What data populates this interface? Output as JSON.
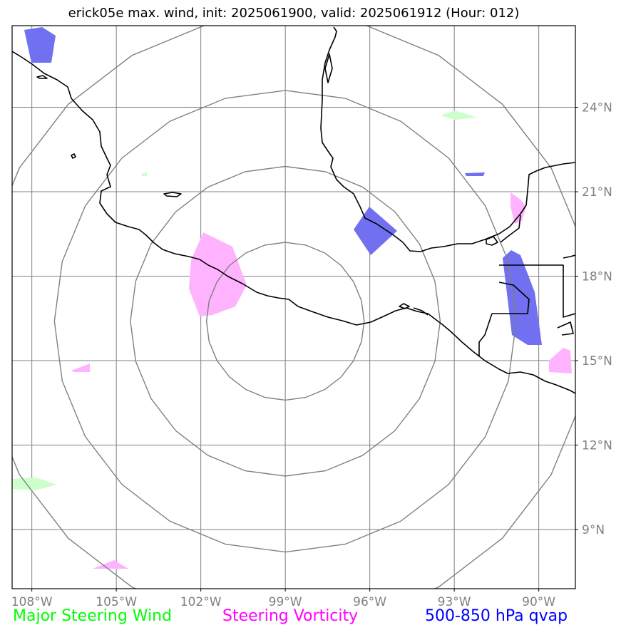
{
  "title": "erick05e max. wind, init: 2025061900, valid: 2025061912 (Hour: 012)",
  "map": {
    "lon_range": [
      -108.7,
      -88.7
    ],
    "lat_range": [
      6.9,
      26.9
    ],
    "lon_ticks": [
      -108,
      -105,
      -102,
      -99,
      -96,
      -93,
      -90
    ],
    "lon_tick_labels": [
      "108°W",
      "105°W",
      "102°W",
      "99°W",
      "96°W",
      "93°W",
      "90°W"
    ],
    "lat_ticks": [
      9,
      12,
      15,
      18,
      21,
      24
    ],
    "lat_tick_labels": [
      "9°N",
      "12°N",
      "15°N",
      "18°N",
      "21°N",
      "24°N"
    ],
    "gridlines": true,
    "gridline_color": "#808080",
    "range_rings_center": [
      -99.0,
      16.4
    ],
    "range_ring_radii_deg": [
      2.8,
      5.5,
      8.2,
      10.9
    ]
  },
  "legend": [
    {
      "label": "Major Steering Wind",
      "color": "#00ff00"
    },
    {
      "label": "Steering Vorticity",
      "color": "#ff00ff"
    },
    {
      "label": "500-850 hPa qvap",
      "color": "#0000ff"
    }
  ],
  "colors": {
    "wind_fill": "#ccffcc",
    "vorticity_fill": "#ffb3ff",
    "qvap_fill": "#7070f0",
    "coastline": "#000000",
    "ring": "#808080"
  }
}
